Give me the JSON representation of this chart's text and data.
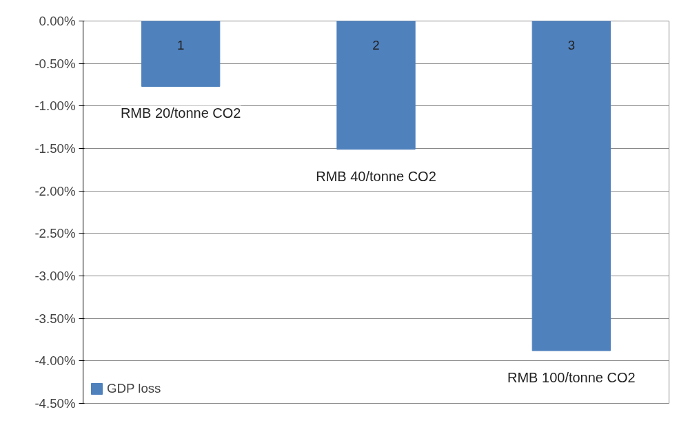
{
  "chart_data": {
    "type": "bar",
    "categories": [
      "1",
      "2",
      "3"
    ],
    "series": [
      {
        "name": "GDP loss",
        "color": "#4f81bd",
        "values": [
          -0.77,
          -1.51,
          -3.88
        ]
      }
    ],
    "ylim": [
      -4.5,
      0
    ],
    "yticks": [
      {
        "value": 0,
        "label": "0.00%"
      },
      {
        "value": -0.5,
        "label": "-0.50%"
      },
      {
        "value": -1,
        "label": "-1.00%"
      },
      {
        "value": -1.5,
        "label": "-1.50%"
      },
      {
        "value": -2,
        "label": "-2.00%"
      },
      {
        "value": -2.5,
        "label": "-2.50%"
      },
      {
        "value": -3,
        "label": "-3.00%"
      },
      {
        "value": -3.5,
        "label": "-3.50%"
      },
      {
        "value": -4,
        "label": "-4.00%"
      },
      {
        "value": -4.5,
        "label": "-4.50%"
      }
    ],
    "annotations": [
      {
        "text": "RMB 20/tonne CO2",
        "x": "1",
        "y": -0.77
      },
      {
        "text": "RMB 40/tonne CO2",
        "x": "2",
        "y": -1.51
      },
      {
        "text": "RMB 100/tonne CO2",
        "x": "3",
        "y": -3.88
      }
    ],
    "grid": "y",
    "legend": "bottom left"
  }
}
